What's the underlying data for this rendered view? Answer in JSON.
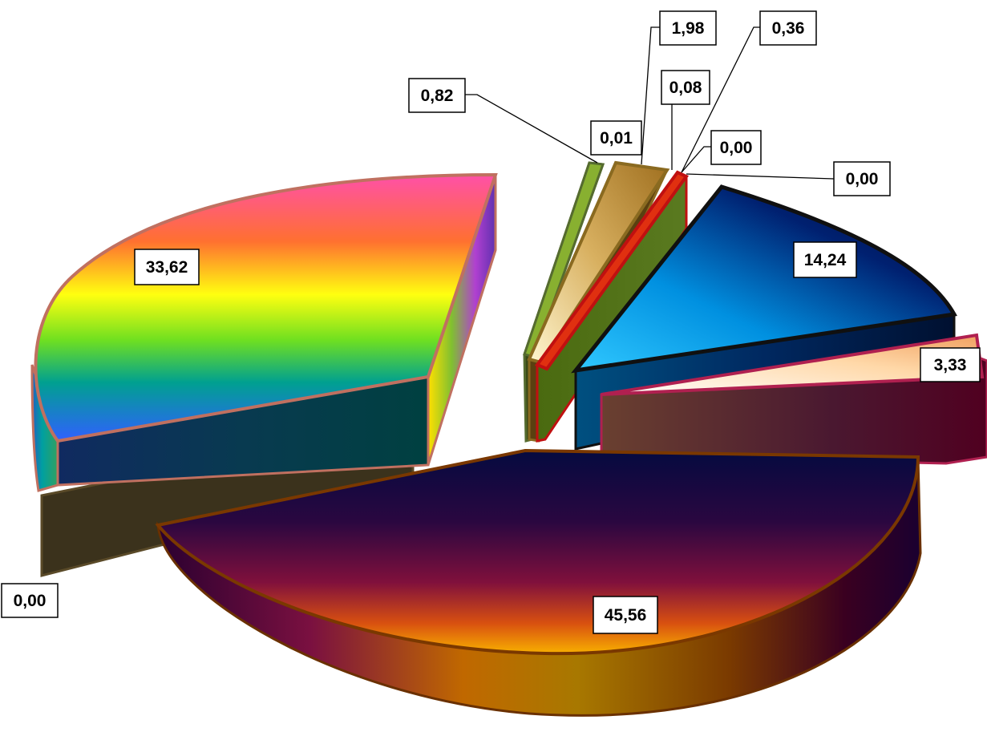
{
  "chart_data": {
    "type": "pie",
    "title": "",
    "slices": [
      {
        "label": "45,56",
        "value": 45.56
      },
      {
        "label": "0,00",
        "value": 0.0
      },
      {
        "label": "33,62",
        "value": 33.62
      },
      {
        "label": "0,82",
        "value": 0.82
      },
      {
        "label": "0,01",
        "value": 0.01
      },
      {
        "label": "1,98",
        "value": 1.98
      },
      {
        "label": "0,08",
        "value": 0.08
      },
      {
        "label": "0,36",
        "value": 0.36
      },
      {
        "label": "0,00",
        "value": 0.0
      },
      {
        "label": "0,00",
        "value": 0.0
      },
      {
        "label": "14,24",
        "value": 14.24
      },
      {
        "label": "3,33",
        "value": 3.33
      }
    ],
    "legend": "none",
    "style": "3d-exploded"
  }
}
